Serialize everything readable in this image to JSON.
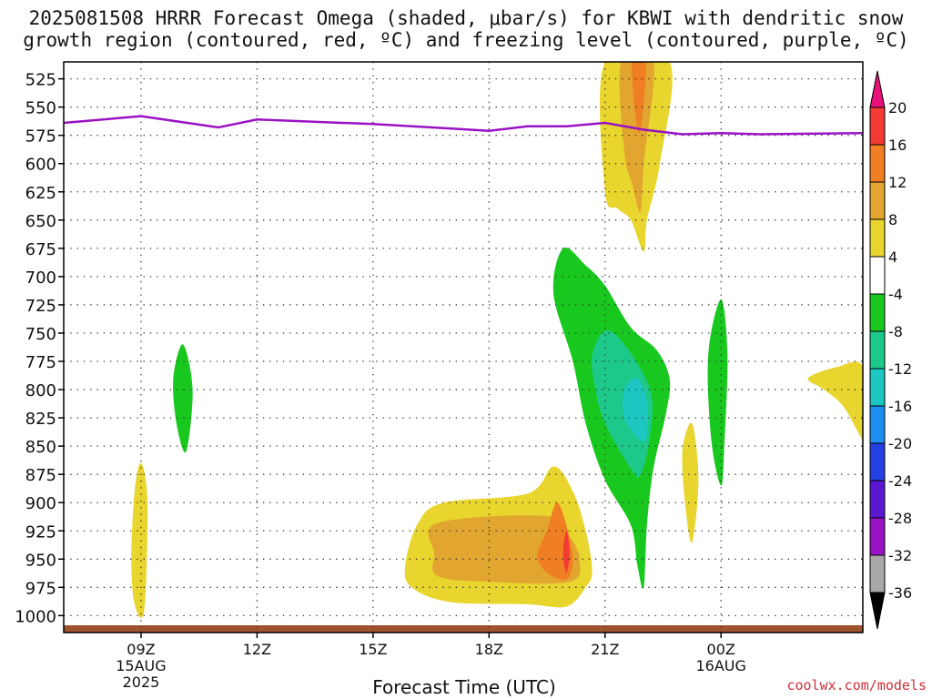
{
  "title": {
    "line1": "2025081508 HRRR Forecast Omega (shaded, μbar/s) for KBWI with dendritic snow",
    "line2": "growth region (contoured, red, ºC) and freezing level (contoured, purple, ºC)"
  },
  "credit": "coolwx.com/models",
  "chart_data": {
    "type": "contour",
    "title": "2025081508 HRRR Forecast Omega (shaded, μbar/s) for KBWI with dendritic snow growth region (contoured, red, ºC) and freezing level (contoured, purple, ºC)",
    "xlabel": "Forecast Time (UTC)",
    "ylabel": "",
    "y_scale": "pressure (inverted)",
    "xlim": [
      "2025-08-15T07:00Z",
      "2025-08-16T03:40Z"
    ],
    "ylim": [
      1015,
      510
    ],
    "grid": true,
    "x_ticks": [
      {
        "t": "2025-08-15T09:00Z",
        "label": "09Z",
        "sub1": "15AUG",
        "sub2": "2025"
      },
      {
        "t": "2025-08-15T12:00Z",
        "label": "12Z",
        "sub1": "",
        "sub2": ""
      },
      {
        "t": "2025-08-15T15:00Z",
        "label": "15Z",
        "sub1": "",
        "sub2": ""
      },
      {
        "t": "2025-08-15T18:00Z",
        "label": "18Z",
        "sub1": "",
        "sub2": ""
      },
      {
        "t": "2025-08-15T21:00Z",
        "label": "21Z",
        "sub1": "",
        "sub2": ""
      },
      {
        "t": "2025-08-16T00:00Z",
        "label": "00Z",
        "sub1": "16AUG",
        "sub2": ""
      }
    ],
    "y_ticks": [
      525,
      550,
      575,
      600,
      625,
      650,
      675,
      700,
      725,
      750,
      775,
      800,
      825,
      850,
      875,
      900,
      925,
      950,
      975,
      1000
    ],
    "colorbar": {
      "labels": [
        "20",
        "16",
        "12",
        "8",
        "4",
        "-4",
        "-8",
        "-12",
        "-16",
        "-20",
        "-24",
        "-28",
        "-32",
        "-36"
      ],
      "bins": [
        {
          "from": 20,
          "to": null,
          "color": "#e8117a"
        },
        {
          "from": 16,
          "to": 20,
          "color": "#f33a33"
        },
        {
          "from": 12,
          "to": 16,
          "color": "#f07e22"
        },
        {
          "from": 8,
          "to": 12,
          "color": "#e2a52f"
        },
        {
          "from": 4,
          "to": 8,
          "color": "#e8d52e"
        },
        {
          "from": -4,
          "to": 4,
          "color": "#ffffff"
        },
        {
          "from": -8,
          "to": -4,
          "color": "#19c81e"
        },
        {
          "from": -12,
          "to": -8,
          "color": "#1dc98a"
        },
        {
          "from": -16,
          "to": -12,
          "color": "#1cc7c2"
        },
        {
          "from": -20,
          "to": -16,
          "color": "#1e8ef0"
        },
        {
          "from": -24,
          "to": -20,
          "color": "#2440e3"
        },
        {
          "from": -28,
          "to": -24,
          "color": "#5a16d0"
        },
        {
          "from": -32,
          "to": -28,
          "color": "#9a12c5"
        },
        {
          "from": -36,
          "to": -32,
          "color": "#a8a8a8"
        },
        {
          "from": null,
          "to": -36,
          "color": "#000000"
        }
      ]
    },
    "freezing_level": {
      "color": "#9a12c5",
      "points": [
        [
          "2025-08-15T07:00Z",
          564
        ],
        [
          "2025-08-15T09:00Z",
          558
        ],
        [
          "2025-08-15T11:00Z",
          568
        ],
        [
          "2025-08-15T12:00Z",
          561
        ],
        [
          "2025-08-15T15:00Z",
          565
        ],
        [
          "2025-08-15T18:00Z",
          571
        ],
        [
          "2025-08-15T19:00Z",
          567
        ],
        [
          "2025-08-15T20:00Z",
          567
        ],
        [
          "2025-08-15T21:00Z",
          564
        ],
        [
          "2025-08-15T22:00Z",
          570
        ],
        [
          "2025-08-15T23:00Z",
          574
        ],
        [
          "2025-08-16T00:00Z",
          573
        ],
        [
          "2025-08-16T01:00Z",
          574
        ],
        [
          "2025-08-16T03:40Z",
          573
        ]
      ]
    },
    "ground_color": "#a0522d",
    "omega_regions": [
      {
        "name": "upper-positive-4",
        "color": "#e8d52e",
        "points": [
          [
            "2025-08-15T21:00Z",
            510
          ],
          [
            "2025-08-15T22:40Z",
            510
          ],
          [
            "2025-08-15T22:25Z",
            600
          ],
          [
            "2025-08-15T22:05Z",
            650
          ],
          [
            "2025-08-15T22:00Z",
            678
          ],
          [
            "2025-08-15T21:40Z",
            650
          ],
          [
            "2025-08-15T21:20Z",
            640
          ],
          [
            "2025-08-15T21:00Z",
            625
          ]
        ]
      },
      {
        "name": "upper-positive-8",
        "color": "#e2a52f",
        "points": [
          [
            "2025-08-15T21:25Z",
            510
          ],
          [
            "2025-08-15T22:15Z",
            510
          ],
          [
            "2025-08-15T22:00Z",
            600
          ],
          [
            "2025-08-15T21:55Z",
            643
          ],
          [
            "2025-08-15T21:43Z",
            620
          ],
          [
            "2025-08-15T21:30Z",
            590
          ]
        ]
      },
      {
        "name": "upper-positive-12",
        "color": "#f07e22",
        "points": [
          [
            "2025-08-15T21:42Z",
            510
          ],
          [
            "2025-08-15T22:03Z",
            510
          ],
          [
            "2025-08-15T21:55Z",
            570
          ],
          [
            "2025-08-15T21:48Z",
            560
          ]
        ]
      },
      {
        "name": "lower-positive-4",
        "color": "#e8d52e",
        "points": [
          [
            "2025-08-15T16:50Z",
            900
          ],
          [
            "2025-08-15T19:00Z",
            892
          ],
          [
            "2025-08-15T19:40Z",
            868
          ],
          [
            "2025-08-15T20:10Z",
            890
          ],
          [
            "2025-08-15T20:30Z",
            925
          ],
          [
            "2025-08-15T20:40Z",
            960
          ],
          [
            "2025-08-15T20:30Z",
            975
          ],
          [
            "2025-08-15T20:00Z",
            992
          ],
          [
            "2025-08-15T19:00Z",
            990
          ],
          [
            "2025-08-15T17:00Z",
            988
          ],
          [
            "2025-08-15T16:00Z",
            975
          ],
          [
            "2025-08-15T15:50Z",
            955
          ],
          [
            "2025-08-15T16:10Z",
            918
          ]
        ]
      },
      {
        "name": "lower-positive-8",
        "color": "#e2a52f",
        "points": [
          [
            "2025-08-15T16:40Z",
            918
          ],
          [
            "2025-08-15T19:30Z",
            912
          ],
          [
            "2025-08-15T20:05Z",
            930
          ],
          [
            "2025-08-15T20:20Z",
            950
          ],
          [
            "2025-08-15T20:05Z",
            970
          ],
          [
            "2025-08-15T18:00Z",
            970
          ],
          [
            "2025-08-15T16:40Z",
            965
          ],
          [
            "2025-08-15T16:35Z",
            945
          ]
        ]
      },
      {
        "name": "lower-positive-12",
        "color": "#f07e22",
        "points": [
          [
            "2025-08-15T19:30Z",
            925
          ],
          [
            "2025-08-15T19:45Z",
            900
          ],
          [
            "2025-08-15T20:00Z",
            920
          ],
          [
            "2025-08-15T20:10Z",
            950
          ],
          [
            "2025-08-15T20:00Z",
            968
          ],
          [
            "2025-08-15T19:30Z",
            962
          ],
          [
            "2025-08-15T19:15Z",
            947
          ]
        ]
      },
      {
        "name": "lower-positive-16",
        "color": "#f33a33",
        "points": [
          [
            "2025-08-15T19:55Z",
            945
          ],
          [
            "2025-08-15T20:00Z",
            925
          ],
          [
            "2025-08-15T20:05Z",
            945
          ],
          [
            "2025-08-15T20:00Z",
            962
          ]
        ]
      },
      {
        "name": "early-positive-4",
        "color": "#e8d52e",
        "points": [
          [
            "2025-08-15T08:50Z",
            890
          ],
          [
            "2025-08-15T09:00Z",
            865
          ],
          [
            "2025-08-15T09:10Z",
            900
          ],
          [
            "2025-08-15T09:05Z",
            995
          ],
          [
            "2025-08-15T08:50Z",
            990
          ],
          [
            "2025-08-15T08:45Z",
            950
          ]
        ]
      },
      {
        "name": "negative-green-early",
        "color": "#19c81e",
        "points": [
          [
            "2025-08-15T09:50Z",
            790
          ],
          [
            "2025-08-15T10:05Z",
            760
          ],
          [
            "2025-08-15T10:20Z",
            800
          ],
          [
            "2025-08-15T10:10Z",
            855
          ],
          [
            "2025-08-15T09:55Z",
            830
          ]
        ]
      },
      {
        "name": "negative-green-main",
        "color": "#19c81e",
        "points": [
          [
            "2025-08-15T19:40Z",
            715
          ],
          [
            "2025-08-15T19:55Z",
            675
          ],
          [
            "2025-08-15T20:30Z",
            690
          ],
          [
            "2025-08-15T21:00Z",
            708
          ],
          [
            "2025-08-15T21:40Z",
            745
          ],
          [
            "2025-08-15T22:20Z",
            765
          ],
          [
            "2025-08-15T22:40Z",
            790
          ],
          [
            "2025-08-15T22:35Z",
            820
          ],
          [
            "2025-08-15T22:15Z",
            870
          ],
          [
            "2025-08-15T22:05Z",
            920
          ],
          [
            "2025-08-15T22:00Z",
            975
          ],
          [
            "2025-08-15T21:50Z",
            955
          ],
          [
            "2025-08-15T21:40Z",
            920
          ],
          [
            "2025-08-15T21:00Z",
            880
          ],
          [
            "2025-08-15T20:30Z",
            830
          ],
          [
            "2025-08-15T20:10Z",
            775
          ]
        ]
      },
      {
        "name": "negative-teal",
        "color": "#1dc98a",
        "points": [
          [
            "2025-08-15T20:40Z",
            770
          ],
          [
            "2025-08-15T21:00Z",
            748
          ],
          [
            "2025-08-15T21:30Z",
            760
          ],
          [
            "2025-08-15T22:10Z",
            800
          ],
          [
            "2025-08-15T22:10Z",
            840
          ],
          [
            "2025-08-15T21:55Z",
            875
          ],
          [
            "2025-08-15T21:40Z",
            870
          ],
          [
            "2025-08-15T21:00Z",
            830
          ],
          [
            "2025-08-15T20:45Z",
            800
          ]
        ]
      },
      {
        "name": "negative-cyan",
        "color": "#1cc7c2",
        "points": [
          [
            "2025-08-15T21:30Z",
            800
          ],
          [
            "2025-08-15T21:50Z",
            790
          ],
          [
            "2025-08-15T22:05Z",
            810
          ],
          [
            "2025-08-15T22:05Z",
            840
          ],
          [
            "2025-08-15T21:55Z",
            845
          ],
          [
            "2025-08-15T21:30Z",
            825
          ]
        ]
      },
      {
        "name": "negative-green-late",
        "color": "#19c81e",
        "points": [
          [
            "2025-08-15T23:40Z",
            770
          ],
          [
            "2025-08-16T00:00Z",
            720
          ],
          [
            "2025-08-16T00:10Z",
            770
          ],
          [
            "2025-08-16T00:05Z",
            850
          ],
          [
            "2025-08-16T00:00Z",
            885
          ],
          [
            "2025-08-15T23:45Z",
            845
          ]
        ]
      },
      {
        "name": "late-positive-4",
        "color": "#e8d52e",
        "points": [
          [
            "2025-08-15T23:00Z",
            855
          ],
          [
            "2025-08-15T23:15Z",
            830
          ],
          [
            "2025-08-15T23:25Z",
            880
          ],
          [
            "2025-08-15T23:15Z",
            935
          ],
          [
            "2025-08-15T23:05Z",
            905
          ]
        ]
      },
      {
        "name": "edge-positive-4",
        "color": "#e8d52e",
        "points": [
          [
            "2025-08-16T02:15Z",
            790
          ],
          [
            "2025-08-16T03:00Z",
            780
          ],
          [
            "2025-08-16T03:40Z",
            780
          ],
          [
            "2025-08-16T03:40Z",
            840
          ],
          [
            "2025-08-16T03:35Z",
            840
          ],
          [
            "2025-08-16T03:10Z",
            815
          ],
          [
            "2025-08-16T02:40Z",
            800
          ]
        ]
      }
    ]
  }
}
